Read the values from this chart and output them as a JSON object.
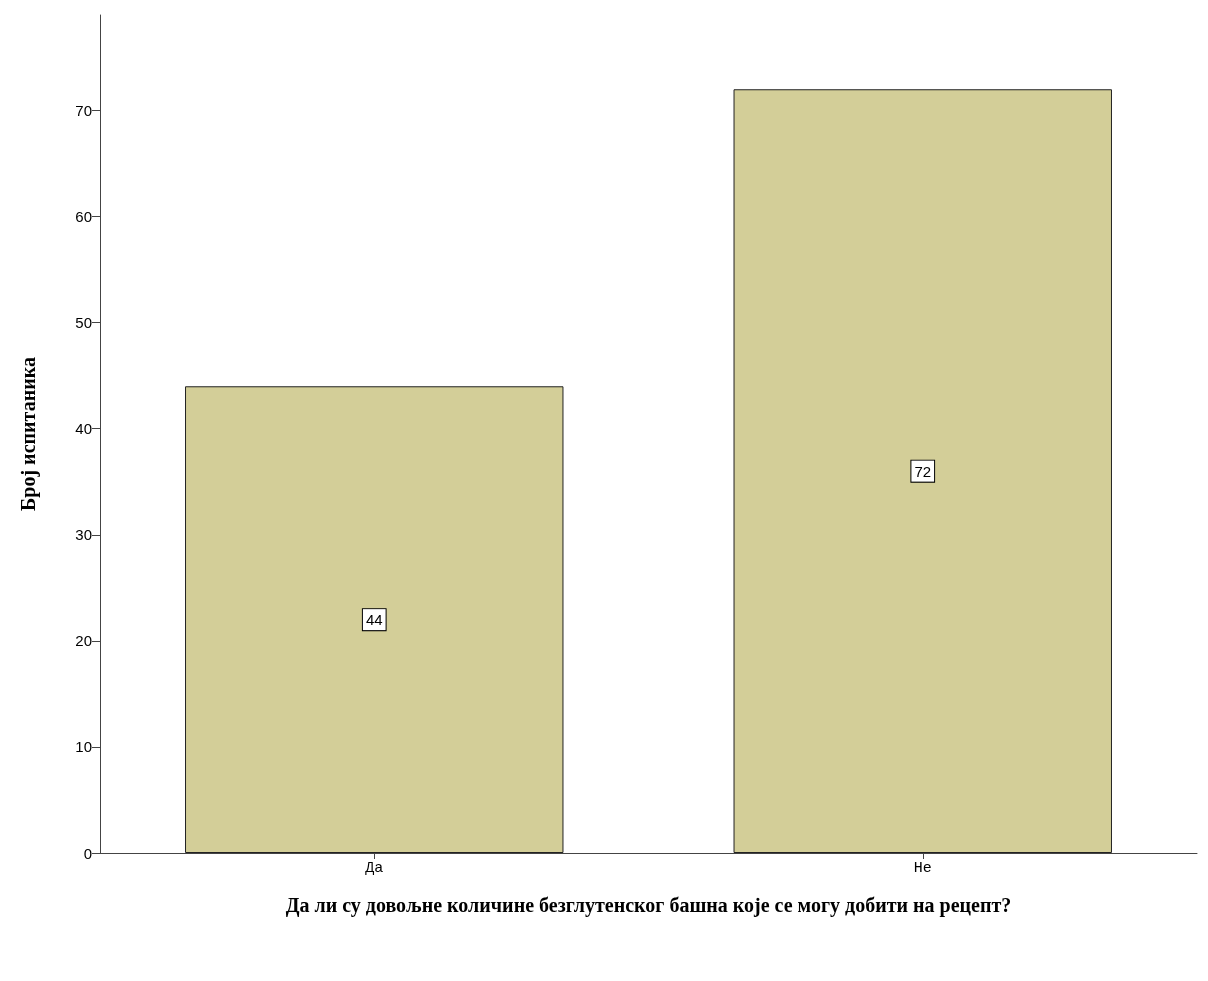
{
  "chart_data": {
    "type": "bar",
    "xlabel": "Да ли су довољне количине безглутенског башна које се могу добити на рецепт?",
    "ylabel": "Број испитаника",
    "categories": [
      "Да",
      "Не"
    ],
    "values": [
      44,
      72
    ],
    "color": "#d3ce98",
    "ylim": [
      0,
      79
    ],
    "yticks": [
      0,
      10,
      20,
      30,
      40,
      50,
      60,
      70
    ],
    "grid": false,
    "data_labels": true
  }
}
